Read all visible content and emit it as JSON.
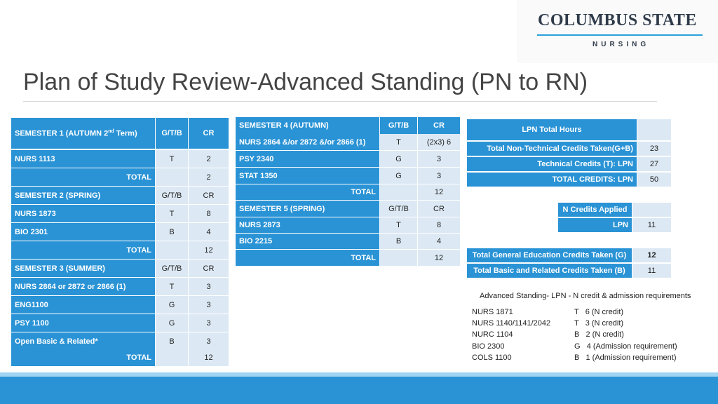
{
  "header": {
    "logo_title": "COLUMBUS STATE",
    "logo_subtitle": "NURSING",
    "title": "Plan of Study Review-Advanced Standing (PN to RN)"
  },
  "table1": {
    "s1_head": "SEMESTER 1 (AUTUMN 2nd Term)",
    "s1_head_pre": "SEMESTER 1 (AUTUMN 2",
    "s1_head_sup": "nd",
    "s1_head_post": " Term)",
    "col_gtb": "G/T/B",
    "col_cr": "CR",
    "s1_rows": [
      {
        "course": "NURS 1113",
        "gtb": "T",
        "cr": "2"
      }
    ],
    "s1_total_label": "TOTAL",
    "s1_total": "2",
    "s2_head": "SEMESTER 2 (SPRING)",
    "s2_rows": [
      {
        "course": "NURS 1873",
        "gtb": "T",
        "cr": "8"
      },
      {
        "course": "BIO 2301",
        "gtb": "B",
        "cr": "4"
      }
    ],
    "s2_total_label": "TOTAL",
    "s2_total": "12",
    "s3_head": "SEMESTER 3 (SUMMER)",
    "s3_rows": [
      {
        "course": "NURS 2864 or 2872 or 2866 (1)",
        "gtb": "T",
        "cr": "3"
      },
      {
        "course": "ENG1100",
        "gtb": "G",
        "cr": "3"
      },
      {
        "course": "PSY 1100",
        "gtb": "G",
        "cr": "3"
      },
      {
        "course": "Open Basic & Related*",
        "gtb": "B",
        "cr": "3"
      }
    ],
    "s3_total_label": "TOTAL",
    "s3_total": "12"
  },
  "table2": {
    "s4_head": "SEMESTER 4 (AUTUMN)",
    "col_gtb": "G/T/B",
    "col_cr": "CR",
    "s4_rows": [
      {
        "course": "NURS 2864 &/or 2872 &/or 2866 (1)",
        "gtb": "T",
        "cr": "(2x3) 6"
      },
      {
        "course": "PSY 2340",
        "gtb": "G",
        "cr": "3"
      },
      {
        "course": "STAT 1350",
        "gtb": "G",
        "cr": "3"
      }
    ],
    "s4_total_label": "TOTAL",
    "s4_total": "12",
    "s5_head": "SEMESTER 5 (SPRING)",
    "s5_rows": [
      {
        "course": "NURS 2873",
        "gtb": "T",
        "cr": "8"
      },
      {
        "course": "BIO 2215",
        "gtb": "B",
        "cr": "4"
      }
    ],
    "s5_total_label": "TOTAL",
    "s5_total": "12"
  },
  "summary": {
    "lpn_hours_label": "LPN Total Hours",
    "lpn_hours_value": "",
    "nontech_label": "Total Non-Technical Credits Taken(G+B)",
    "nontech_value": "23",
    "tech_label": "Technical Credits (T): LPN",
    "tech_value": "27",
    "total_label": "TOTAL CREDITS: LPN",
    "total_value": "50",
    "ncredits_label": "N Credits Applied",
    "ncredits_value": "",
    "lpn_label": "LPN",
    "lpn_value": "11",
    "gened_label": "Total General Education Credits Taken (G)",
    "gened_value": "12",
    "basic_label": "Total Basic and Related Credits Taken (B)",
    "basic_value": "11"
  },
  "notes": {
    "heading": "Advanced Standing- LPN - N credit & admission requirements",
    "items": [
      {
        "course": "NURS 1871",
        "detail": "T   6 (N credit)"
      },
      {
        "course": "NURS 1140/1141/2042",
        "detail": "T   3 (N credit)"
      },
      {
        "course": "NURC 1104",
        "detail": "B   2 (N credit)"
      },
      {
        "course": "BIO 2300",
        "detail": "G   4 (Admission requirement)"
      },
      {
        "course": "COLS 1100",
        "detail": "B   1 (Admission requirement)"
      }
    ]
  }
}
